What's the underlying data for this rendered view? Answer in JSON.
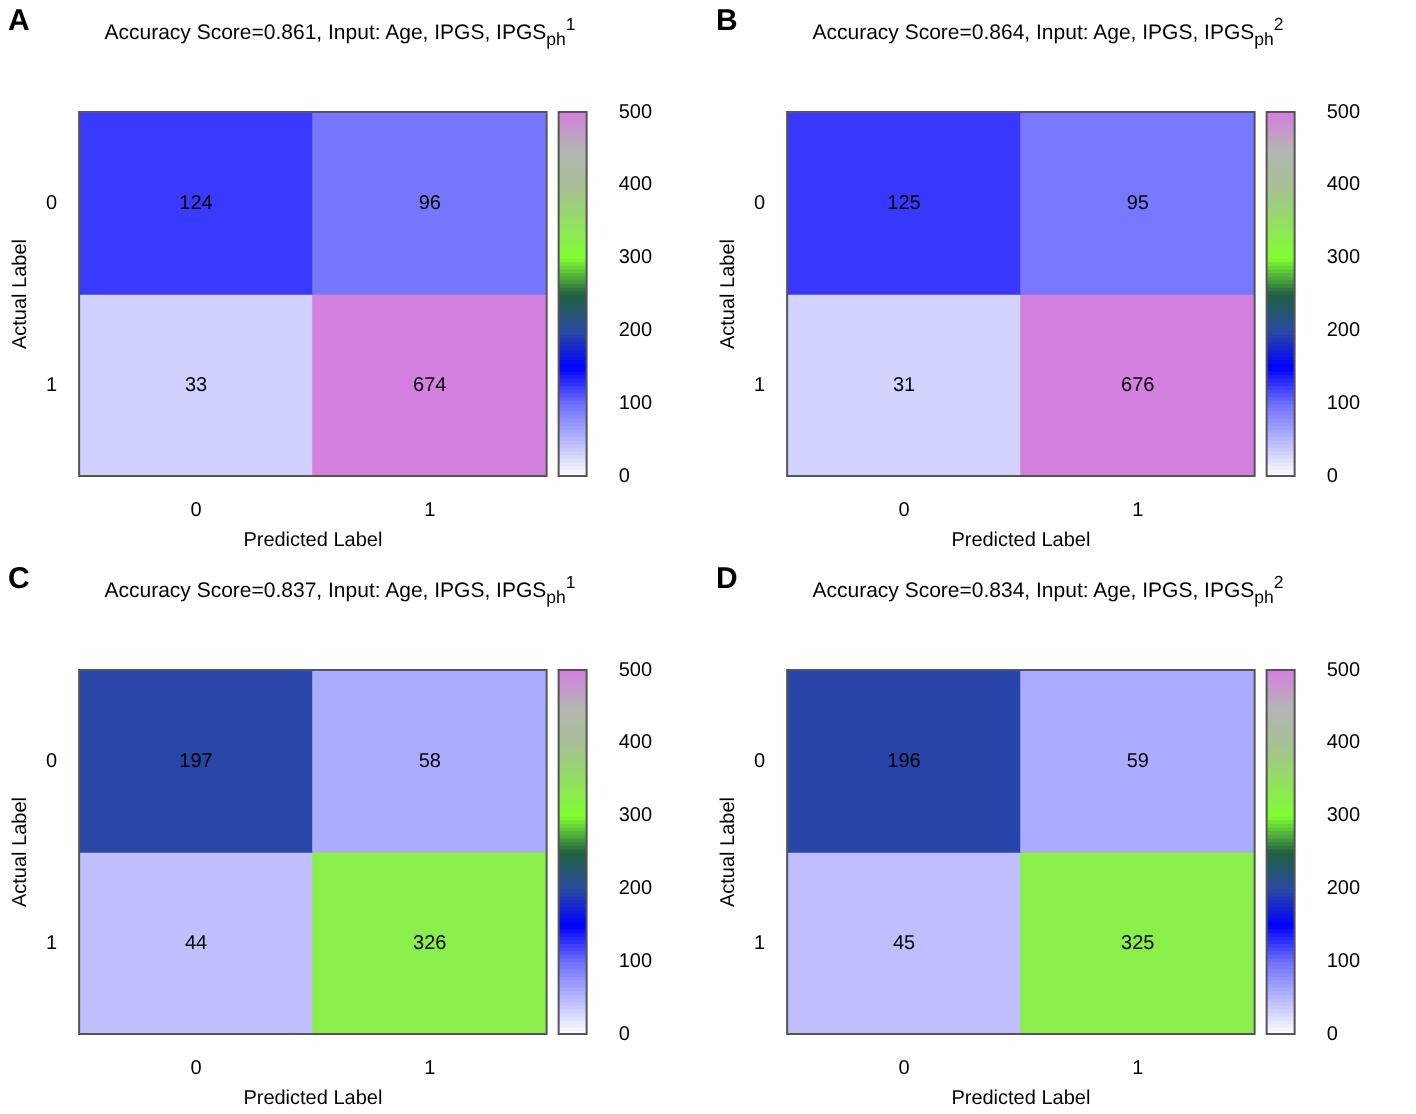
{
  "chart_data": [
    {
      "type": "heatmap",
      "title": "Accuracy Score=0.861, Input: Age, IPGS, IPGS$_{ph}$$^{1}$",
      "xlabel": "Predicted Label",
      "ylabel": "Actual Label",
      "categories": [
        "0",
        "1"
      ],
      "y_categories": [
        "0",
        "1"
      ],
      "cells": [
        [
          124,
          96
        ],
        [
          33,
          674
        ]
      ],
      "clim": [
        0,
        500
      ],
      "cticks": [
        0,
        100,
        200,
        300,
        400,
        500
      ],
      "data_labels": true,
      "annotations": [
        "A"
      ]
    },
    {
      "type": "heatmap",
      "title": "Accuracy Score=0.864, Input: Age, IPGS, IPGS$_{ph}$$^{2}$",
      "xlabel": "Predicted Label",
      "ylabel": "Actual Label",
      "categories": [
        "0",
        "1"
      ],
      "y_categories": [
        "0",
        "1"
      ],
      "cells": [
        [
          125,
          95
        ],
        [
          31,
          676
        ]
      ],
      "clim": [
        0,
        500
      ],
      "cticks": [
        0,
        100,
        200,
        300,
        400,
        500
      ],
      "data_labels": true,
      "annotations": [
        "B"
      ]
    },
    {
      "type": "heatmap",
      "title": "Accuracy Score=0.837, Input: Age, IPGS, IPGS$_{ph}$$^{1}$",
      "xlabel": "Predicted Label",
      "ylabel": "Actual Label",
      "categories": [
        "0",
        "1"
      ],
      "y_categories": [
        "0",
        "1"
      ],
      "cells": [
        [
          197,
          58
        ],
        [
          44,
          326
        ]
      ],
      "clim": [
        0,
        500
      ],
      "cticks": [
        0,
        100,
        200,
        300,
        400,
        500
      ],
      "data_labels": true,
      "annotations": [
        "C"
      ]
    },
    {
      "type": "heatmap",
      "title": "Accuracy Score=0.834, Input: Age, IPGS, IPGS$_{ph}$$^{2}$",
      "xlabel": "Predicted Label",
      "ylabel": "Actual Label",
      "categories": [
        "0",
        "1"
      ],
      "y_categories": [
        "0",
        "1"
      ],
      "cells": [
        [
          196,
          59
        ],
        [
          45,
          325
        ]
      ],
      "clim": [
        0,
        500
      ],
      "cticks": [
        0,
        100,
        200,
        300,
        400,
        500
      ],
      "data_labels": true,
      "annotations": [
        "D"
      ]
    }
  ]
}
